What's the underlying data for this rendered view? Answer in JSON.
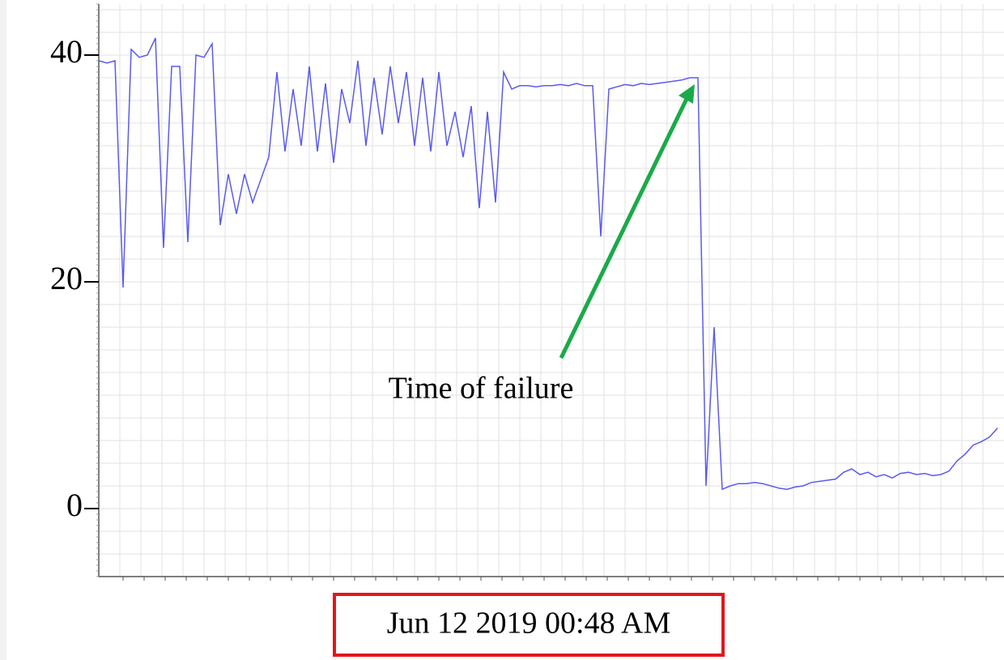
{
  "chart_data": {
    "type": "line",
    "ylim": [
      -6,
      44.5
    ],
    "yticks": [
      0,
      20,
      40
    ],
    "grid": true,
    "series": [
      {
        "color": "#5a5af0",
        "values": [
          39.5,
          39.3,
          39.5,
          19.5,
          40.5,
          39.8,
          40,
          41.5,
          23,
          39,
          39,
          23.5,
          40,
          39.8,
          41,
          25,
          29.5,
          26,
          29.5,
          27,
          29,
          31,
          38.5,
          31.5,
          37,
          32,
          39,
          31.5,
          37.5,
          30.5,
          37,
          34,
          39.5,
          32,
          38,
          33,
          39,
          34,
          38.5,
          32,
          38,
          31.5,
          38.5,
          32,
          35,
          31,
          35.5,
          26.5,
          35,
          27,
          38.5,
          37,
          37.3,
          37.3,
          37.2,
          37.3,
          37.3,
          37.4,
          37.3,
          37.5,
          37.3,
          37.3,
          24,
          37,
          37.2,
          37.4,
          37.3,
          37.5,
          37.4,
          37.5,
          37.6,
          37.7,
          37.8,
          38,
          38,
          2,
          16,
          1.7,
          2,
          2.2,
          2.2,
          2.3,
          2.2,
          2.0,
          1.8,
          1.7,
          1.9,
          2.0,
          2.3,
          2.4,
          2.5,
          2.6,
          3.2,
          3.5,
          3.0,
          3.2,
          2.8,
          3.0,
          2.7,
          3.1,
          3.2,
          3.0,
          3.1,
          2.9,
          3.0,
          3.3,
          4.2,
          4.8,
          5.6,
          5.9,
          6.3,
          7.1
        ]
      }
    ],
    "annotations": [
      {
        "text": "Time of failure"
      }
    ],
    "xlabel": "Jun 12 2019 00:48 AM"
  }
}
